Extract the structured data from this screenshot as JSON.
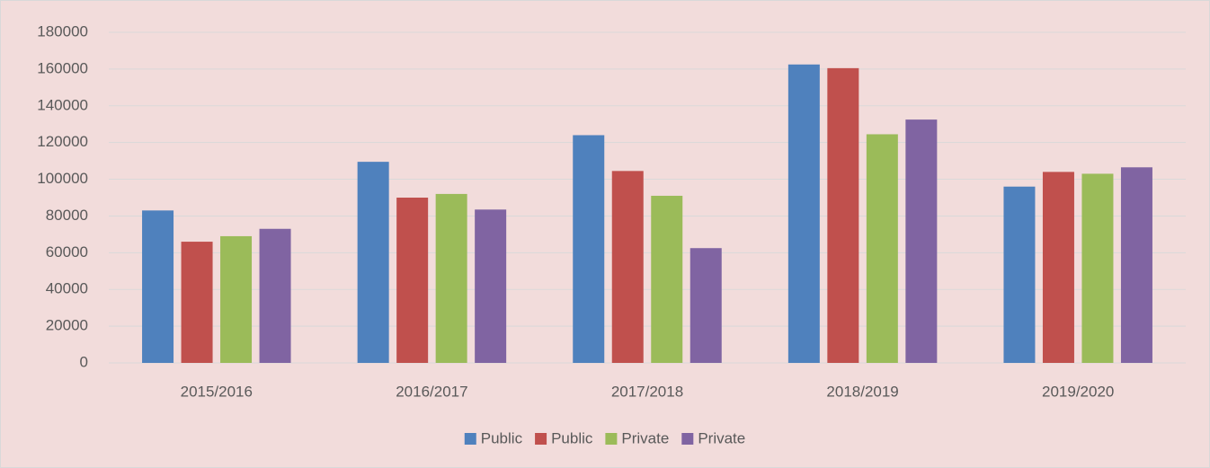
{
  "chart_data": {
    "type": "bar",
    "categories": [
      "2015/2016",
      "2016/2017",
      "2017/2018",
      "2018/2019",
      "2019/2020"
    ],
    "series": [
      {
        "name": "Public",
        "color": "#4f81bd",
        "values": [
          83000,
          109500,
          124000,
          162500,
          96000
        ]
      },
      {
        "name": "Public",
        "color": "#c0504d",
        "values": [
          66000,
          90000,
          104500,
          160500,
          104000
        ]
      },
      {
        "name": "Private",
        "color": "#9bbb59",
        "values": [
          69000,
          92000,
          91000,
          124500,
          103000
        ]
      },
      {
        "name": "Private",
        "color": "#8064a2",
        "values": [
          73000,
          83500,
          62500,
          132500,
          106500
        ]
      }
    ],
    "ylim": [
      0,
      180000
    ],
    "yticks": [
      0,
      20000,
      40000,
      60000,
      80000,
      100000,
      120000,
      140000,
      160000,
      180000
    ],
    "grid": true,
    "legend": "bottom"
  }
}
